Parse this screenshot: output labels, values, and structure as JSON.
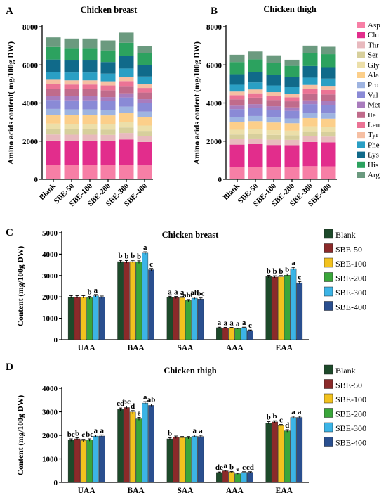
{
  "panels": [
    {
      "id": "A",
      "letter": "A",
      "title": "Chicken breast",
      "type": "stacked-bar",
      "categories": [
        "Blank",
        "SBE-50",
        "SBE-100",
        "SBE-200",
        "SBE-300",
        "SBE-400"
      ],
      "ylabel": "Amino acids content( mg/100g DW)",
      "ylim": [
        0,
        8000
      ],
      "yticks": [
        0,
        2000,
        4000,
        6000,
        8000
      ],
      "series": [
        {
          "name": "Asp",
          "color": "#f77fa6",
          "values": [
            750,
            750,
            750,
            750,
            770,
            730
          ]
        },
        {
          "name": "Clu",
          "color": "#e22d8c",
          "values": [
            1280,
            1270,
            1270,
            1260,
            1320,
            1230
          ]
        },
        {
          "name": "Thr",
          "color": "#e8b9be",
          "values": [
            320,
            320,
            320,
            320,
            340,
            310
          ]
        },
        {
          "name": "Ser",
          "color": "#d7cf9c",
          "values": [
            280,
            280,
            280,
            280,
            290,
            270
          ]
        },
        {
          "name": "Gly",
          "color": "#ecdfa9",
          "values": [
            290,
            290,
            290,
            290,
            300,
            280
          ]
        },
        {
          "name": "Ala",
          "color": "#fccf8a",
          "values": [
            470,
            460,
            460,
            450,
            480,
            440
          ]
        },
        {
          "name": "Pro",
          "color": "#9eb4e1",
          "values": [
            300,
            300,
            300,
            290,
            310,
            290
          ]
        },
        {
          "name": "Val",
          "color": "#8a8ad6",
          "values": [
            470,
            470,
            470,
            460,
            480,
            450
          ]
        },
        {
          "name": "Met",
          "color": "#a97cbd",
          "values": [
            210,
            210,
            210,
            210,
            220,
            200
          ]
        },
        {
          "name": "Ile",
          "color": "#c06b8b",
          "values": [
            370,
            370,
            370,
            360,
            380,
            350
          ]
        },
        {
          "name": "Leu",
          "color": "#eb7395",
          "values": [
            260,
            250,
            250,
            250,
            260,
            240
          ]
        },
        {
          "name": "Tyr",
          "color": "#f6bfa3",
          "values": [
            220,
            220,
            220,
            220,
            230,
            210
          ]
        },
        {
          "name": "Phe",
          "color": "#2a9fc4",
          "values": [
            420,
            410,
            410,
            400,
            430,
            390
          ]
        },
        {
          "name": "Lys",
          "color": "#106a8a",
          "values": [
            640,
            630,
            630,
            610,
            660,
            600
          ]
        },
        {
          "name": "His",
          "color": "#2ca25f",
          "values": [
            660,
            650,
            650,
            610,
            690,
            610
          ]
        },
        {
          "name": "Arg",
          "color": "#6b9a7f",
          "values": [
            500,
            500,
            500,
            520,
            530,
            400
          ]
        }
      ]
    },
    {
      "id": "B",
      "letter": "B",
      "title": "Chicken thigh",
      "type": "stacked-bar",
      "categories": [
        "Blank",
        "SBE-50",
        "SBE-100",
        "SBE-200",
        "SBE-300",
        "SBE-400"
      ],
      "ylabel": "Amino acids content (mg/100g DW)",
      "ylim": [
        0,
        8000
      ],
      "yticks": [
        0,
        2000,
        4000,
        6000,
        8000
      ],
      "series": [
        {
          "name": "Asp",
          "color": "#f77fa6",
          "values": [
            650,
            660,
            640,
            640,
            690,
            680
          ]
        },
        {
          "name": "Clu",
          "color": "#e22d8c",
          "values": [
            1170,
            1190,
            1160,
            1150,
            1270,
            1260
          ]
        },
        {
          "name": "Thr",
          "color": "#e8b9be",
          "values": [
            280,
            290,
            280,
            280,
            300,
            300
          ]
        },
        {
          "name": "Ser",
          "color": "#d7cf9c",
          "values": [
            250,
            250,
            250,
            240,
            260,
            260
          ]
        },
        {
          "name": "Gly",
          "color": "#ecdfa9",
          "values": [
            250,
            250,
            250,
            240,
            260,
            260
          ]
        },
        {
          "name": "Ala",
          "color": "#fccf8a",
          "values": [
            400,
            410,
            400,
            390,
            430,
            420
          ]
        },
        {
          "name": "Pro",
          "color": "#9eb4e1",
          "values": [
            260,
            270,
            260,
            250,
            280,
            280
          ]
        },
        {
          "name": "Val",
          "color": "#8a8ad6",
          "values": [
            420,
            430,
            410,
            400,
            450,
            440
          ]
        },
        {
          "name": "Met",
          "color": "#a97cbd",
          "values": [
            180,
            190,
            180,
            180,
            200,
            200
          ]
        },
        {
          "name": "Ile",
          "color": "#c06b8b",
          "values": [
            330,
            340,
            330,
            320,
            360,
            350
          ]
        },
        {
          "name": "Leu",
          "color": "#eb7395",
          "values": [
            220,
            230,
            220,
            210,
            240,
            240
          ]
        },
        {
          "name": "Tyr",
          "color": "#f6bfa3",
          "values": [
            190,
            200,
            190,
            190,
            210,
            210
          ]
        },
        {
          "name": "Phe",
          "color": "#2a9fc4",
          "values": [
            360,
            370,
            350,
            340,
            380,
            380
          ]
        },
        {
          "name": "Lys",
          "color": "#106a8a",
          "values": [
            550,
            560,
            540,
            520,
            610,
            600
          ]
        },
        {
          "name": "His",
          "color": "#2ca25f",
          "values": [
            640,
            650,
            630,
            600,
            680,
            680
          ]
        },
        {
          "name": "Arg",
          "color": "#6b9a7f",
          "values": [
            380,
            410,
            410,
            320,
            390,
            390
          ]
        }
      ]
    },
    {
      "id": "C",
      "letter": "C",
      "title": "Chicken breast",
      "type": "grouped-bar",
      "categories": [
        "UAA",
        "BAA",
        "SAA",
        "AAA",
        "EAA"
      ],
      "ylabel": "Content (mg/100g DW)",
      "ylim": [
        0,
        5000
      ],
      "yticks": [
        0,
        1000,
        2000,
        3000,
        4000,
        5000
      ],
      "series": [
        {
          "name": "Blank",
          "color": "#1d4a2a",
          "values": [
            2000,
            3650,
            1980,
            560,
            2950
          ],
          "errors": [
            60,
            60,
            50,
            25,
            60
          ],
          "letters": [
            "",
            "b",
            "a",
            "a",
            "b"
          ]
        },
        {
          "name": "SBE-50",
          "color": "#8b2a2a",
          "values": [
            2000,
            3640,
            1970,
            550,
            2930
          ],
          "errors": [
            60,
            60,
            50,
            25,
            60
          ],
          "letters": [
            "",
            "b",
            "a",
            "a",
            "b"
          ]
        },
        {
          "name": "SBE-100",
          "color": "#f2c21e",
          "values": [
            2000,
            3650,
            1960,
            550,
            2940
          ],
          "errors": [
            60,
            60,
            50,
            25,
            60
          ],
          "letters": [
            "",
            "b",
            "a",
            "a",
            "b"
          ]
        },
        {
          "name": "SBE-200",
          "color": "#3aa63a",
          "values": [
            1960,
            3630,
            1830,
            520,
            3020
          ],
          "errors": [
            60,
            60,
            50,
            25,
            60
          ],
          "letters": [
            "b",
            "b",
            "abc",
            "a",
            "b"
          ]
        },
        {
          "name": "SBE-300",
          "color": "#3cb4e6",
          "values": [
            2050,
            4050,
            1940,
            560,
            3320
          ],
          "errors": [
            60,
            60,
            50,
            25,
            60
          ],
          "letters": [
            "a",
            "a",
            "ab",
            "a",
            "a"
          ]
        },
        {
          "name": "SBE-400",
          "color": "#2a4f8f",
          "values": [
            1980,
            3270,
            1900,
            430,
            2660
          ],
          "errors": [
            60,
            60,
            50,
            25,
            60
          ],
          "letters": [
            "",
            "c",
            "bc",
            "c",
            "c"
          ]
        }
      ]
    },
    {
      "id": "D",
      "letter": "D",
      "title": "Chicken thigh",
      "type": "grouped-bar",
      "categories": [
        "UAA",
        "BAA",
        "SAA",
        "AAA",
        "EAA"
      ],
      "ylabel": "Content  (mg/100g DW)",
      "ylim": [
        0,
        4000
      ],
      "yticks": [
        0,
        1000,
        2000,
        3000,
        4000
      ],
      "series": [
        {
          "name": "Blank",
          "color": "#1d4a2a",
          "values": [
            1800,
            3100,
            1850,
            420,
            2530
          ],
          "errors": [
            50,
            60,
            50,
            25,
            50
          ],
          "letters": [
            "bc",
            "cd",
            "b",
            "de",
            "b"
          ]
        },
        {
          "name": "SBE-50",
          "color": "#8b2a2a",
          "values": [
            1850,
            3180,
            1920,
            490,
            2570
          ],
          "errors": [
            50,
            60,
            50,
            25,
            50
          ],
          "letters": [
            "b",
            "bc",
            "",
            "a",
            "b"
          ]
        },
        {
          "name": "SBE-100",
          "color": "#f2c21e",
          "values": [
            1780,
            2990,
            1900,
            440,
            2410
          ],
          "errors": [
            50,
            60,
            50,
            25,
            50
          ],
          "letters": [
            "c",
            "d",
            "",
            "b",
            "c"
          ]
        },
        {
          "name": "SBE-200",
          "color": "#3aa63a",
          "values": [
            1800,
            2700,
            1900,
            370,
            2190
          ],
          "errors": [
            50,
            60,
            50,
            25,
            50
          ],
          "letters": [
            "bc",
            "e",
            "",
            "e",
            "d"
          ]
        },
        {
          "name": "SBE-300",
          "color": "#3cb4e6",
          "values": [
            1960,
            3370,
            1960,
            430,
            2760
          ],
          "errors": [
            50,
            60,
            50,
            25,
            50
          ],
          "letters": [
            "a",
            "a",
            "a",
            "c",
            "a"
          ]
        },
        {
          "name": "SBE-400",
          "color": "#2a4f8f",
          "values": [
            1970,
            3270,
            1950,
            430,
            2760
          ],
          "errors": [
            50,
            60,
            50,
            25,
            50
          ],
          "letters": [
            "a",
            "ab",
            "a",
            "cd",
            "a"
          ]
        }
      ]
    }
  ],
  "chart_data": [
    {
      "type": "bar",
      "stacked": true,
      "title": "Chicken breast",
      "categories": [
        "Blank",
        "SBE-50",
        "SBE-100",
        "SBE-200",
        "SBE-300",
        "SBE-400"
      ],
      "ylabel": "Amino acids content( mg/100g DW)",
      "ylim": [
        0,
        8000
      ],
      "legend": "right"
    },
    {
      "type": "bar",
      "stacked": true,
      "title": "Chicken thigh",
      "categories": [
        "Blank",
        "SBE-50",
        "SBE-100",
        "SBE-200",
        "SBE-300",
        "SBE-400"
      ],
      "ylabel": "Amino acids content (mg/100g DW)",
      "ylim": [
        0,
        8000
      ],
      "legend": "right"
    },
    {
      "type": "bar",
      "title": "Chicken breast",
      "categories": [
        "UAA",
        "BAA",
        "SAA",
        "AAA",
        "EAA"
      ],
      "ylabel": "Content (mg/100g DW)",
      "ylim": [
        0,
        5000
      ],
      "legend": "right"
    },
    {
      "type": "bar",
      "title": "Chicken thigh",
      "categories": [
        "UAA",
        "BAA",
        "SAA",
        "AAA",
        "EAA"
      ],
      "ylabel": "Content  (mg/100g DW)",
      "ylim": [
        0,
        4000
      ],
      "legend": "right"
    }
  ]
}
